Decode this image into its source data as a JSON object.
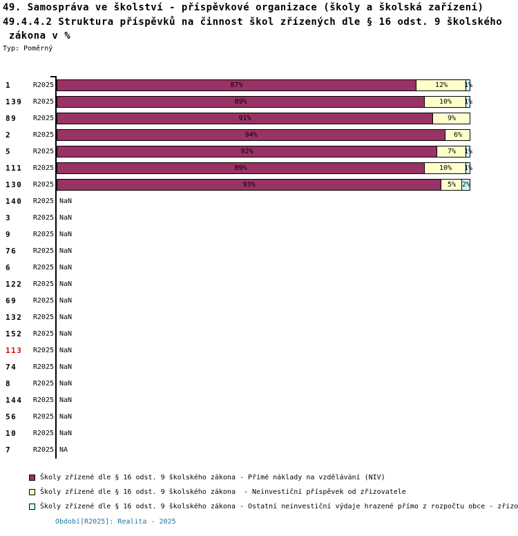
{
  "title": {
    "line1": "49. Samospráva ve školství - příspěvkové organizace (školy a školská zařízení)",
    "line2": "49.4.4.2 Struktura příspěvků na činnost škol zřízených dle § 16 odst. 9 školského",
    "line3": " zákona v %",
    "type_label": "Typ: Poměrný"
  },
  "colors": {
    "series_1": "#993366",
    "series_2": "#FFFFCC",
    "series_3": "#CCFFFF",
    "highlight_row": "#DD0000",
    "footer_text": "#1F74A0",
    "axis": "#000000"
  },
  "chart_data": {
    "type": "bar",
    "orientation": "horizontal",
    "stacked": true,
    "unit": "%",
    "xlim": [
      0,
      100
    ],
    "grid": false,
    "legend_position": "bottom",
    "series": [
      {
        "name": "Školy zřízené dle § 16 odst. 9 školského zákona - Přímé náklady na vzdělávání (NIV)",
        "color": "#993366"
      },
      {
        "name": "Školy zřízené dle § 16 odst. 9 školského zákona  - Neinvestiční příspěvek od zřizovatele",
        "color": "#FFFFCC"
      },
      {
        "name": "Školy zřízené dle § 16 odst. 9 školského zákona - Ostatní neinvestiční výdaje hrazené přímo z rozpočtu obce - zřizo",
        "color": "#CCFFFF"
      }
    ],
    "rows": [
      {
        "id": "1",
        "period": "R2025",
        "values": [
          87,
          12,
          1
        ],
        "labels": [
          "87%",
          "12%",
          "1%"
        ]
      },
      {
        "id": "139",
        "period": "R2025",
        "values": [
          89,
          10,
          1
        ],
        "labels": [
          "89%",
          "10%",
          "1%"
        ]
      },
      {
        "id": "89",
        "period": "R2025",
        "values": [
          91,
          9,
          0
        ],
        "labels": [
          "91%",
          "9%",
          ""
        ]
      },
      {
        "id": "2",
        "period": "R2025",
        "values": [
          94,
          6,
          0
        ],
        "labels": [
          "94%",
          "6%",
          ""
        ]
      },
      {
        "id": "5",
        "period": "R2025",
        "values": [
          92,
          7,
          1
        ],
        "labels": [
          "92%",
          "7%",
          "1%"
        ]
      },
      {
        "id": "111",
        "period": "R2025",
        "values": [
          89,
          10,
          1
        ],
        "labels": [
          "89%",
          "10%",
          "1%"
        ]
      },
      {
        "id": "130",
        "period": "R2025",
        "values": [
          93,
          5,
          2
        ],
        "labels": [
          "93%",
          "5%",
          "2%"
        ]
      },
      {
        "id": "140",
        "period": "R2025",
        "values": null,
        "na_text": "NaN"
      },
      {
        "id": "3",
        "period": "R2025",
        "values": null,
        "na_text": "NaN"
      },
      {
        "id": "9",
        "period": "R2025",
        "values": null,
        "na_text": "NaN"
      },
      {
        "id": "76",
        "period": "R2025",
        "values": null,
        "na_text": "NaN"
      },
      {
        "id": "6",
        "period": "R2025",
        "values": null,
        "na_text": "NaN"
      },
      {
        "id": "122",
        "period": "R2025",
        "values": null,
        "na_text": "NaN"
      },
      {
        "id": "69",
        "period": "R2025",
        "values": null,
        "na_text": "NaN"
      },
      {
        "id": "132",
        "period": "R2025",
        "values": null,
        "na_text": "NaN"
      },
      {
        "id": "152",
        "period": "R2025",
        "values": null,
        "na_text": "NaN"
      },
      {
        "id": "113",
        "period": "R2025",
        "values": null,
        "na_text": "NaN",
        "highlight": true
      },
      {
        "id": "74",
        "period": "R2025",
        "values": null,
        "na_text": "NaN"
      },
      {
        "id": "8",
        "period": "R2025",
        "values": null,
        "na_text": "NaN"
      },
      {
        "id": "144",
        "period": "R2025",
        "values": null,
        "na_text": "NaN"
      },
      {
        "id": "56",
        "period": "R2025",
        "values": null,
        "na_text": "NaN"
      },
      {
        "id": "10",
        "period": "R2025",
        "values": null,
        "na_text": "NaN"
      },
      {
        "id": "7",
        "period": "R2025",
        "values": null,
        "na_text": "NA"
      }
    ]
  },
  "footer": {
    "text": "Období[R2025]: Realita - 2025"
  }
}
